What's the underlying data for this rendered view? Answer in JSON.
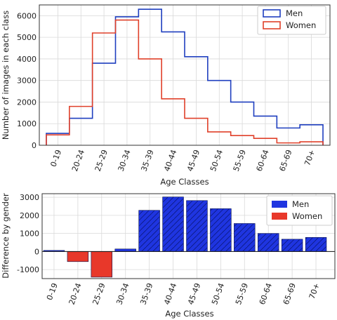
{
  "chart_data": [
    {
      "type": "line",
      "style": "step-histogram",
      "categories": [
        "0-19",
        "20-24",
        "25-29",
        "30-34",
        "35-39",
        "40-44",
        "45-49",
        "50-54",
        "55-59",
        "60-64",
        "65-69",
        "70+"
      ],
      "series": [
        {
          "name": "Men",
          "color": "#1f3fbf",
          "values": [
            550,
            1250,
            3800,
            5950,
            6300,
            5250,
            4100,
            3000,
            2000,
            1350,
            800,
            950
          ]
        },
        {
          "name": "Women",
          "color": "#e0402a",
          "values": [
            480,
            1800,
            5200,
            5800,
            4000,
            2150,
            1250,
            620,
            450,
            320,
            110,
            160
          ]
        }
      ],
      "xlabel": "Age Classes",
      "ylabel": "Number of images in each class",
      "ylim": [
        0,
        6500
      ],
      "yticks": [
        0,
        1000,
        2000,
        3000,
        4000,
        5000,
        6000
      ],
      "grid": true,
      "legend": "top-right"
    },
    {
      "type": "bar",
      "categories": [
        "0-19",
        "20-24",
        "25-29",
        "30-34",
        "35-39",
        "40-44",
        "45-49",
        "50-54",
        "55-59",
        "60-64",
        "65-69",
        "70+"
      ],
      "values": [
        60,
        -560,
        -1420,
        140,
        2280,
        3020,
        2820,
        2370,
        1550,
        1000,
        680,
        780
      ],
      "series": [
        {
          "name": "Men",
          "color": "#1f35e0"
        },
        {
          "name": "Women",
          "color": "#e8382a"
        }
      ],
      "xlabel": "Age Classes",
      "ylabel": "Difference by gender",
      "ylim": [
        -1500,
        3200
      ],
      "yticks": [
        -1000,
        0,
        1000,
        2000,
        3000
      ],
      "grid": true,
      "legend": "top-right"
    }
  ]
}
